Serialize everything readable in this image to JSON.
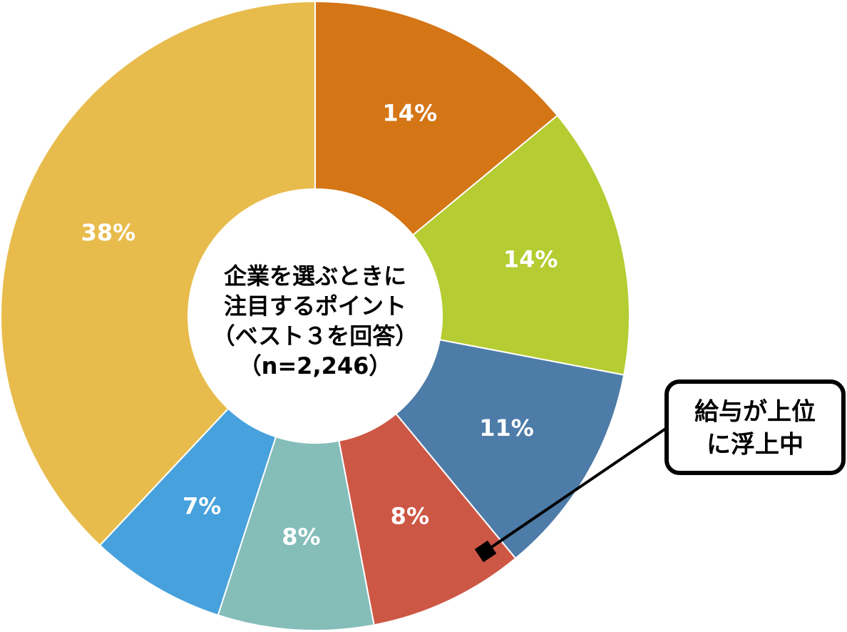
{
  "chart_data": {
    "type": "donut",
    "title": [
      "企業を選ぶときに",
      "注目するポイント",
      "（ベスト３を回答）",
      "（n=2,246）"
    ],
    "values": [
      14,
      14,
      11,
      8,
      8,
      7,
      38
    ],
    "value_labels": [
      "14%",
      "14%",
      "11%",
      "8%",
      "8%",
      "7%",
      "38%"
    ],
    "colors": [
      "#d47516",
      "#b5cc32",
      "#4e7ca8",
      "#cd5745",
      "#85bdb9",
      "#47a1dc",
      "#e8bc4c"
    ],
    "annotation": [
      "給与が上位",
      "に浮上中"
    ]
  }
}
